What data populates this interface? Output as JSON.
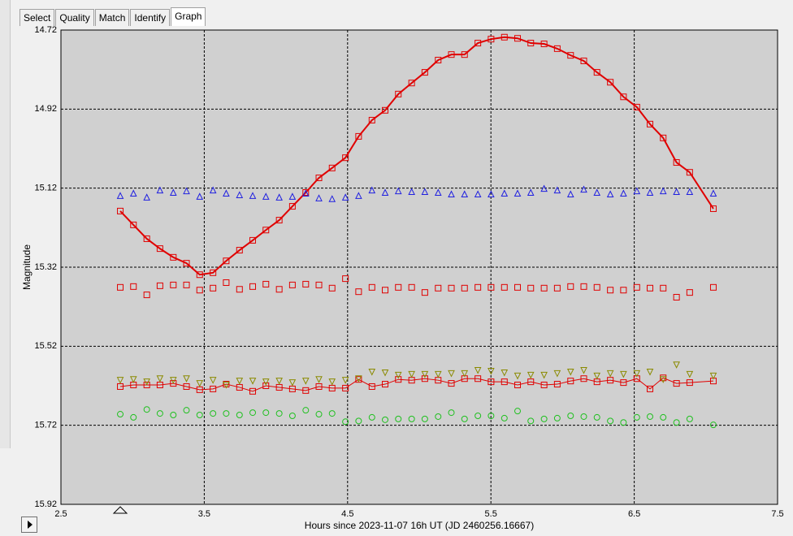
{
  "tabs": [
    "Select",
    "Quality",
    "Match",
    "Identify",
    "Graph"
  ],
  "selected_tab": 4,
  "chart_data": {
    "type": "scatter",
    "xlabel": "Hours since 2023-11-07 16h UT (JD 2460256.16667)",
    "ylabel": "Magnitude",
    "xlim": [
      2.5,
      7.5
    ],
    "xticks": [
      2.5,
      3.5,
      4.5,
      5.5,
      6.5,
      7.5
    ],
    "ylim": [
      15.92,
      14.72
    ],
    "yticks": [
      14.72,
      14.92,
      15.12,
      15.32,
      15.52,
      15.72,
      15.92
    ],
    "grid": true,
    "x": [
      2.914,
      3.006,
      3.099,
      3.191,
      3.284,
      3.376,
      3.468,
      3.561,
      3.653,
      3.746,
      3.838,
      3.93,
      4.023,
      4.115,
      4.208,
      4.3,
      4.392,
      4.485,
      4.577,
      4.67,
      4.762,
      4.854,
      4.947,
      5.039,
      5.132,
      5.224,
      5.316,
      5.409,
      5.501,
      5.594,
      5.686,
      5.778,
      5.871,
      5.963,
      6.056,
      6.148,
      6.24,
      6.333,
      6.425,
      6.518,
      6.61,
      6.702,
      6.795,
      6.887,
      7.052
    ],
    "series": [
      {
        "color": "#e00000",
        "marker": "square",
        "line_width": 2,
        "values": [
          15.178,
          15.213,
          15.248,
          15.273,
          15.295,
          15.31,
          15.339,
          15.334,
          15.304,
          15.277,
          15.252,
          15.226,
          15.201,
          15.166,
          15.131,
          15.094,
          15.069,
          15.043,
          14.989,
          14.948,
          14.923,
          14.882,
          14.854,
          14.827,
          14.796,
          14.782,
          14.782,
          14.753,
          14.743,
          14.738,
          14.741,
          14.753,
          14.755,
          14.767,
          14.784,
          14.798,
          14.827,
          14.852,
          14.889,
          14.915,
          14.958,
          14.993,
          15.055,
          15.08,
          15.172
        ]
      },
      {
        "color": "#2020e0",
        "marker": "triangle-up",
        "line_width": 0,
        "values": [
          15.139,
          15.133,
          15.143,
          15.125,
          15.131,
          15.127,
          15.141,
          15.125,
          15.133,
          15.137,
          15.139,
          15.141,
          15.143,
          15.141,
          15.133,
          15.145,
          15.147,
          15.143,
          15.139,
          15.125,
          15.131,
          15.127,
          15.129,
          15.129,
          15.131,
          15.135,
          15.135,
          15.135,
          15.135,
          15.133,
          15.133,
          15.131,
          15.121,
          15.125,
          15.135,
          15.123,
          15.131,
          15.135,
          15.133,
          15.127,
          15.131,
          15.127,
          15.129,
          15.129,
          15.133
        ]
      },
      {
        "color": "#e00000",
        "marker": "square",
        "line_width": 0,
        "values": [
          15.371,
          15.369,
          15.39,
          15.367,
          15.365,
          15.365,
          15.378,
          15.373,
          15.359,
          15.376,
          15.369,
          15.363,
          15.376,
          15.365,
          15.363,
          15.365,
          15.373,
          15.349,
          15.382,
          15.371,
          15.378,
          15.371,
          15.371,
          15.384,
          15.373,
          15.373,
          15.373,
          15.371,
          15.371,
          15.371,
          15.371,
          15.373,
          15.373,
          15.373,
          15.369,
          15.369,
          15.371,
          15.378,
          15.378,
          15.371,
          15.373,
          15.373,
          15.396,
          15.384,
          15.371
        ]
      },
      {
        "color": "#e00000",
        "marker": "square",
        "line_width": 1,
        "values": [
          15.622,
          15.618,
          15.618,
          15.618,
          15.614,
          15.622,
          15.63,
          15.628,
          15.616,
          15.624,
          15.634,
          15.62,
          15.624,
          15.628,
          15.632,
          15.622,
          15.626,
          15.626,
          15.604,
          15.622,
          15.616,
          15.604,
          15.606,
          15.602,
          15.606,
          15.614,
          15.602,
          15.602,
          15.61,
          15.61,
          15.618,
          15.61,
          15.618,
          15.616,
          15.608,
          15.602,
          15.61,
          15.606,
          15.612,
          15.602,
          15.628,
          15.6,
          15.614,
          15.612,
          15.608
        ]
      },
      {
        "color": "#8a8a00",
        "marker": "triangle-down",
        "line_width": 0,
        "values": [
          15.606,
          15.604,
          15.61,
          15.602,
          15.606,
          15.602,
          15.614,
          15.606,
          15.618,
          15.608,
          15.608,
          15.61,
          15.608,
          15.612,
          15.608,
          15.604,
          15.61,
          15.606,
          15.602,
          15.585,
          15.587,
          15.593,
          15.591,
          15.591,
          15.591,
          15.589,
          15.589,
          15.581,
          15.583,
          15.587,
          15.595,
          15.593,
          15.593,
          15.589,
          15.585,
          15.581,
          15.595,
          15.589,
          15.591,
          15.589,
          15.585,
          15.604,
          15.567,
          15.591,
          15.595
        ]
      },
      {
        "color": "#20c020",
        "marker": "circle",
        "line_width": 0,
        "values": [
          15.692,
          15.7,
          15.68,
          15.69,
          15.694,
          15.682,
          15.694,
          15.69,
          15.69,
          15.694,
          15.688,
          15.688,
          15.69,
          15.696,
          15.682,
          15.692,
          15.69,
          15.711,
          15.709,
          15.7,
          15.706,
          15.704,
          15.704,
          15.704,
          15.698,
          15.688,
          15.704,
          15.696,
          15.696,
          15.702,
          15.684,
          15.709,
          15.704,
          15.702,
          15.696,
          15.698,
          15.7,
          15.709,
          15.713,
          15.7,
          15.698,
          15.7,
          15.713,
          15.704,
          15.719
        ]
      }
    ]
  }
}
